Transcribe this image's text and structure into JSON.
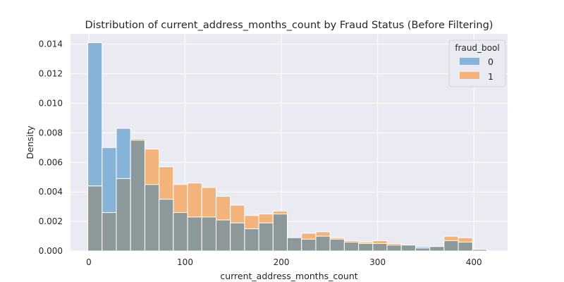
{
  "chart_data": {
    "type": "bar",
    "subtype": "histogram",
    "title": "Distribution of current_address_months_count by Fraud Status (Before Filtering)",
    "xlabel": "current_address_months_count",
    "ylabel": "Density",
    "xlim": [
      -19,
      435
    ],
    "ylim": [
      0,
      0.0147
    ],
    "x_ticks": [
      0,
      100,
      200,
      300,
      400
    ],
    "y_ticks": [
      0.0,
      0.002,
      0.004,
      0.006,
      0.008,
      0.01,
      0.012,
      0.014
    ],
    "y_tick_labels": [
      "0.000",
      "0.002",
      "0.004",
      "0.006",
      "0.008",
      "0.010",
      "0.012",
      "0.014"
    ],
    "grid": true,
    "bin_edges": [
      -1,
      13.8,
      28.6,
      43.4,
      58.2,
      73.0,
      87.8,
      102.6,
      117.4,
      132.2,
      147.0,
      161.8,
      176.6,
      191.4,
      206.2,
      221.0,
      235.8,
      250.6,
      265.4,
      280.2,
      295.0,
      309.8,
      324.6,
      339.4,
      354.2,
      369.0,
      383.8,
      398.6,
      413.4,
      428.2
    ],
    "legend": {
      "title": "fraud_bool",
      "position": "top-right",
      "entries": [
        {
          "label": "0",
          "color": "#4c8ec4"
        },
        {
          "label": "1",
          "color": "#f28e2b"
        }
      ]
    },
    "series": [
      {
        "name": "0",
        "color": "#4c8ec4",
        "values": [
          0.0141,
          0.007,
          0.0083,
          0.0075,
          0.0045,
          0.0035,
          0.0026,
          0.0023,
          0.0023,
          0.0021,
          0.0019,
          0.0015,
          0.0019,
          0.0025,
          0.0009,
          0.0008,
          0.001,
          0.0008,
          0.0006,
          0.0005,
          0.0005,
          0.0004,
          0.0004,
          0.0003,
          0.0003,
          0.0007,
          0.0006,
          0.0001,
          0.0
        ]
      },
      {
        "name": "1",
        "color": "#f28e2b",
        "values": [
          0.0044,
          0.0026,
          0.0049,
          0.0076,
          0.0069,
          0.0057,
          0.0045,
          0.0046,
          0.0043,
          0.0037,
          0.0031,
          0.0024,
          0.0025,
          0.0027,
          0.0009,
          0.0012,
          0.0013,
          0.0009,
          0.0007,
          0.0006,
          0.0007,
          0.0005,
          0.0004,
          0.0002,
          0.0003,
          0.001,
          0.0009,
          0.0001,
          0.0
        ]
      }
    ]
  }
}
